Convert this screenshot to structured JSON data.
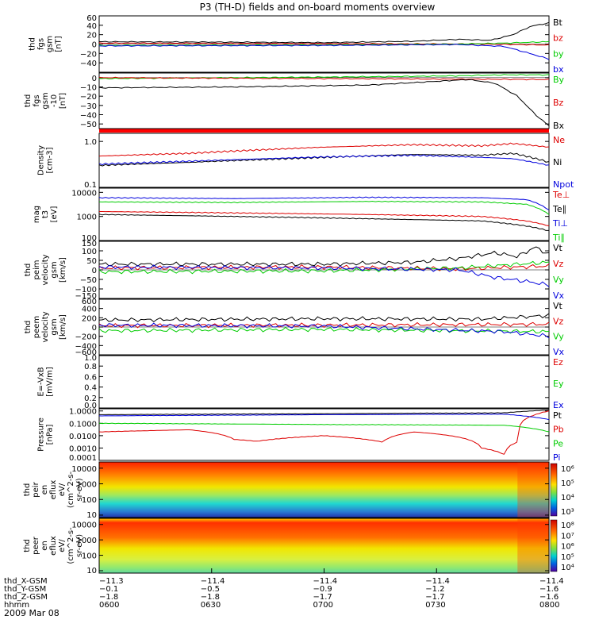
{
  "title": "P3 (TH-D) fields and on-board moments overview",
  "date_label": "2009 Mar 08",
  "chart_data": [
    {
      "type": "line",
      "panel": "fgs-gsm",
      "ylabel": [
        "thd",
        "fgs",
        "gsm",
        "[nT]"
      ],
      "ylim": [
        -60,
        60
      ],
      "yticks": [
        60,
        40,
        20,
        0,
        -20,
        -40
      ],
      "ytick_labels": [
        "60",
        "40",
        "20",
        "0",
        "−20",
        "−40"
      ],
      "series": [
        {
          "name": "Bt",
          "color": "#000000",
          "x": [
            0,
            0.3,
            0.5,
            0.7,
            0.8,
            0.87,
            0.92,
            0.96,
            1.0
          ],
          "y": [
            5,
            4,
            3,
            6,
            10,
            8,
            20,
            38,
            45
          ]
        },
        {
          "name": "bz",
          "color": "#dd0000",
          "x": [
            0,
            0.5,
            0.85,
            1.0
          ],
          "y": [
            2,
            1,
            0,
            -2
          ]
        },
        {
          "name": "by",
          "color": "#00cc00",
          "x": [
            0,
            0.5,
            0.8,
            0.9,
            1.0
          ],
          "y": [
            -3,
            -2,
            0,
            2,
            5
          ]
        },
        {
          "name": "bx",
          "color": "#0000dd",
          "x": [
            0,
            0.5,
            0.8,
            0.9,
            0.95,
            1.0
          ],
          "y": [
            -4,
            -3,
            -1,
            -5,
            -18,
            -32
          ]
        }
      ]
    },
    {
      "type": "line",
      "panel": "fgs-gsm-10",
      "ylabel": [
        "thd",
        "fgs",
        "gsm",
        "-10",
        "[nT]"
      ],
      "ylim": [
        -55,
        5
      ],
      "yticks": [
        0,
        -10,
        -20,
        -30,
        -40,
        -50
      ],
      "ytick_labels": [
        "0",
        "−10",
        "−20",
        "−30",
        "−40",
        "−50"
      ],
      "series": [
        {
          "name": "By",
          "color": "#00cc00",
          "x": [
            0,
            0.3,
            0.6,
            0.8,
            0.9,
            1.0
          ],
          "y": [
            -1,
            0,
            1,
            2,
            3,
            3
          ]
        },
        {
          "name": "Bz",
          "color": "#dd0000",
          "x": [
            0,
            0.5,
            1.0
          ],
          "y": [
            0,
            -1,
            -2
          ]
        },
        {
          "name": "Bx",
          "color": "#000000",
          "x": [
            0,
            0.3,
            0.6,
            0.75,
            0.82,
            0.88,
            0.93,
            0.97,
            1.0
          ],
          "y": [
            -11,
            -10,
            -8,
            -4,
            -2,
            -6,
            -20,
            -40,
            -52
          ]
        }
      ]
    },
    {
      "type": "line",
      "panel": "density",
      "ylabel": [
        "Density",
        "[cm-3]"
      ],
      "yscale": "log",
      "ylim": [
        0.1,
        1.5
      ],
      "yticks": [
        1.0,
        0.1
      ],
      "ytick_labels": [
        "1.0",
        "0.1"
      ],
      "series": [
        {
          "name": "Ne",
          "color": "#dd0000",
          "x": [
            0,
            0.2,
            0.5,
            0.7,
            0.85,
            0.92,
            1.0
          ],
          "y": [
            0.48,
            0.55,
            0.75,
            0.85,
            0.8,
            0.9,
            0.75
          ]
        },
        {
          "name": "Ni",
          "color": "#000000",
          "x": [
            0,
            0.2,
            0.5,
            0.7,
            0.85,
            0.92,
            1.0
          ],
          "y": [
            0.3,
            0.35,
            0.45,
            0.52,
            0.5,
            0.55,
            0.35
          ]
        },
        {
          "name": "Npot",
          "color": "#0000dd",
          "x": [
            0,
            0.2,
            0.5,
            0.7,
            0.85,
            0.92,
            1.0
          ],
          "y": [
            0.32,
            0.37,
            0.46,
            0.5,
            0.45,
            0.42,
            0.3
          ]
        }
      ]
    },
    {
      "type": "line",
      "panel": "temperature",
      "ylabel": [
        "mag",
        "t3",
        "[eV]"
      ],
      "yscale": "log",
      "ylim": [
        100,
        15000
      ],
      "yticks": [
        10000,
        1000,
        100
      ],
      "ytick_labels": [
        "10000",
        "1000",
        "100"
      ],
      "series": [
        {
          "name": "Te⊥",
          "color": "#dd0000",
          "x": [
            0,
            0.3,
            0.6,
            0.85,
            0.95,
            1.0
          ],
          "y": [
            1600,
            1400,
            1200,
            1000,
            650,
            400
          ]
        },
        {
          "name": "Te∥",
          "color": "#000000",
          "x": [
            0,
            0.3,
            0.6,
            0.85,
            0.95,
            1.0
          ],
          "y": [
            1200,
            1000,
            800,
            650,
            400,
            250
          ]
        },
        {
          "name": "Ti⊥",
          "color": "#0000dd",
          "x": [
            0,
            0.3,
            0.6,
            0.85,
            0.95,
            1.0
          ],
          "y": [
            6000,
            5500,
            6200,
            6000,
            5000,
            1800
          ]
        },
        {
          "name": "Ti∥",
          "color": "#00cc00",
          "x": [
            0,
            0.3,
            0.6,
            0.85,
            0.95,
            1.0
          ],
          "y": [
            4000,
            3800,
            4200,
            4000,
            3200,
            1200
          ]
        }
      ]
    },
    {
      "type": "line",
      "panel": "peim-velocity",
      "ylabel": [
        "thd",
        "peim",
        "velocity",
        "gsm",
        "[km/s]"
      ],
      "ylim": [
        -150,
        150
      ],
      "yticks": [
        150,
        100,
        50,
        0,
        -50,
        -100,
        -150
      ],
      "ytick_labels": [
        "150",
        "100",
        "50",
        "0",
        "−50",
        "−100",
        "−150"
      ],
      "series": [
        {
          "name": "Vt",
          "color": "#000000",
          "x": [
            0,
            0.5,
            0.7,
            0.8,
            0.88,
            0.93,
            0.97,
            1.0
          ],
          "y": [
            30,
            30,
            40,
            60,
            90,
            70,
            120,
            80
          ]
        },
        {
          "name": "Vz",
          "color": "#dd0000",
          "x": [
            0,
            0.5,
            0.8,
            1.0
          ],
          "y": [
            10,
            15,
            5,
            20
          ]
        },
        {
          "name": "Vy",
          "color": "#00cc00",
          "x": [
            0,
            0.5,
            0.8,
            1.0
          ],
          "y": [
            -10,
            -5,
            10,
            40
          ]
        },
        {
          "name": "Vx",
          "color": "#0000dd",
          "x": [
            0,
            0.5,
            0.8,
            0.88,
            0.95,
            1.0
          ],
          "y": [
            15,
            10,
            0,
            -40,
            -60,
            -80
          ]
        }
      ]
    },
    {
      "type": "line",
      "panel": "peem-velocity",
      "ylabel": [
        "thd",
        "peem",
        "velocity",
        "gsm",
        "[km/s]"
      ],
      "ylim": [
        -600,
        600
      ],
      "yticks": [
        600,
        400,
        200,
        0,
        -200,
        -400,
        -600
      ],
      "ytick_labels": [
        "600",
        "400",
        "200",
        "0",
        "−200",
        "−400",
        "−600"
      ],
      "series": [
        {
          "name": "Vt",
          "color": "#000000",
          "x": [
            0,
            0.5,
            0.85,
            1.0
          ],
          "y": [
            150,
            180,
            170,
            250
          ]
        },
        {
          "name": "Vz",
          "color": "#dd0000",
          "x": [
            0,
            0.5,
            1.0
          ],
          "y": [
            30,
            40,
            60
          ]
        },
        {
          "name": "Vy",
          "color": "#00cc00",
          "x": [
            0,
            0.5,
            1.0
          ],
          "y": [
            -80,
            -50,
            -100
          ]
        },
        {
          "name": "Vx",
          "color": "#0000dd",
          "x": [
            0,
            0.5,
            0.9,
            1.0
          ],
          "y": [
            40,
            20,
            -100,
            -200
          ]
        }
      ]
    },
    {
      "type": "line",
      "panel": "efield",
      "ylabel": [
        "E=-VxB",
        "[mV/m]"
      ],
      "ylim": [
        0,
        1
      ],
      "yticks": [
        1.0,
        0.8,
        0.6,
        0.4,
        0.2,
        0.0
      ],
      "ytick_labels": [
        "1.0",
        "0.8",
        "0.6",
        "0.4",
        "0.2",
        "0.0"
      ],
      "series": [
        {
          "name": "Ez",
          "color": "#dd0000",
          "x": [],
          "y": []
        },
        {
          "name": "Ey",
          "color": "#00cc00",
          "x": [],
          "y": []
        },
        {
          "name": "Ex",
          "color": "#0000dd",
          "x": [],
          "y": []
        }
      ]
    },
    {
      "type": "line",
      "panel": "pressure",
      "ylabel": [
        "Pressure",
        "[nPa]"
      ],
      "yscale": "log",
      "ylim": [
        0.0001,
        1.5
      ],
      "yticks": [
        1.0,
        0.1,
        0.01,
        0.001,
        0.0001
      ],
      "ytick_labels": [
        "1.0000",
        "0.1000",
        "0.0100",
        "0.0010",
        "0.0001"
      ],
      "series": [
        {
          "name": "Pt",
          "color": "#000000",
          "x": [
            0,
            0.5,
            0.9,
            1.0
          ],
          "y": [
            0.5,
            0.6,
            0.7,
            1.2
          ]
        },
        {
          "name": "Pb",
          "color": "#dd0000",
          "x": [
            0,
            0.2,
            0.3,
            0.35,
            0.5,
            0.63,
            0.7,
            0.78,
            0.85,
            0.9,
            0.93,
            0.97,
            1.0
          ],
          "y": [
            0.02,
            0.03,
            0.005,
            0.0035,
            0.01,
            0.003,
            0.02,
            0.01,
            0.001,
            0.0003,
            0.003,
            0.5,
            1.0
          ]
        },
        {
          "name": "Pe",
          "color": "#00cc00",
          "x": [
            0,
            0.5,
            0.9,
            1.0
          ],
          "y": [
            0.1,
            0.08,
            0.07,
            0.02
          ]
        },
        {
          "name": "Pi",
          "color": "#0000dd",
          "x": [
            0,
            0.5,
            0.9,
            1.0
          ],
          "y": [
            0.4,
            0.5,
            0.55,
            0.2
          ]
        }
      ]
    },
    {
      "type": "heatmap",
      "panel": "peir-en",
      "ylabel": [
        "thd",
        "peir",
        "en",
        "eflux",
        "eV/",
        "(cm^2-s-",
        "sr-eV)"
      ],
      "yscale": "log",
      "ylim": [
        7,
        25000
      ],
      "yticks": [
        10000,
        1000,
        100,
        10
      ],
      "ytick_labels": [
        "10000",
        "1000",
        "100",
        "10"
      ],
      "colorbar_ticks": [
        "10⁶",
        "10⁵",
        "10⁴",
        "10³"
      ]
    },
    {
      "type": "heatmap",
      "panel": "peer-en",
      "ylabel": [
        "thd",
        "peer",
        "en",
        "eflux",
        "eV/",
        "(cm^2-s-",
        "sr-eV)"
      ],
      "yscale": "log",
      "ylim": [
        7,
        25000
      ],
      "yticks": [
        10000,
        1000,
        100,
        10
      ],
      "ytick_labels": [
        "10000",
        "1000",
        "100",
        "10"
      ],
      "colorbar_ticks": [
        "10⁸",
        "10⁷",
        "10⁶",
        "10⁵",
        "10⁴"
      ]
    }
  ],
  "xaxis": {
    "row_labels": [
      "thd_X-GSM",
      "thd_Y-GSM",
      "thd_Z-GSM",
      "hhmm"
    ],
    "ticks": [
      {
        "x": 0,
        "X": "−11.3",
        "Y": "−0.1",
        "Z": "−1.8",
        "t": "0600"
      },
      {
        "x": 0.25,
        "X": "−11.4",
        "Y": "−0.5",
        "Z": "−1.8",
        "t": "0630"
      },
      {
        "x": 0.5,
        "X": "−11.4",
        "Y": "−0.9",
        "Z": "−1.7",
        "t": "0700"
      },
      {
        "x": 0.75,
        "X": "−11.4",
        "Y": "−1.2",
        "Z": "−1.7",
        "t": "0730"
      },
      {
        "x": 1.0,
        "X": "−11.4",
        "Y": "−1.6",
        "Z": "−1.6",
        "t": "0800"
      }
    ]
  }
}
